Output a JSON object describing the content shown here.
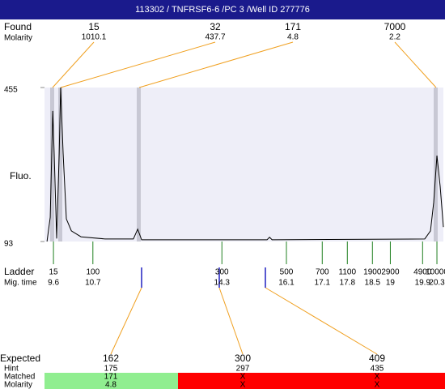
{
  "header": "113302 / TNFRSF6-6 /PC 3 /Well ID 277776",
  "found": {
    "label": "Found",
    "sub_label": "Molarity",
    "peaks": [
      {
        "size": 15,
        "molarity": 1010.1
      },
      {
        "size": 32,
        "molarity": 437.7
      },
      {
        "size": 171,
        "molarity": 4.8
      },
      {
        "size": 7000,
        "molarity": 2.2
      }
    ]
  },
  "chart_data": {
    "type": "line",
    "y_label": "Fluo.",
    "x": [
      9.42,
      9.51,
      9.58,
      9.62,
      9.69,
      9.76,
      9.8,
      9.87,
      9.96,
      10.1,
      10.37,
      11.04,
      11.83,
      11.95,
      12.06,
      15.56,
      15.63,
      15.7,
      19.96,
      20.12,
      20.21,
      20.3,
      20.39,
      20.48
    ],
    "values": [
      93,
      150,
      400,
      300,
      100,
      300,
      455,
      300,
      146,
      118,
      104,
      99,
      99,
      122,
      97,
      97,
      103,
      97,
      99,
      118,
      185,
      295,
      223,
      127
    ],
    "color": "#000000",
    "xlim": [
      9.35,
      20.48
    ],
    "ylim": [
      93,
      455
    ],
    "yticks": [
      93,
      455
    ]
  },
  "ladder": {
    "label": "Ladder",
    "sub_label": "Mig. time",
    "sizes": [
      15,
      100,
      300,
      500,
      700,
      1100,
      1900,
      2900,
      4900,
      10000
    ],
    "mig_times": [
      9.6,
      10.7,
      14.3,
      16.1,
      17.1,
      17.8,
      18.5,
      19,
      19.9,
      20.3
    ]
  },
  "expected": {
    "labels": [
      "Expected",
      "Hint",
      "Matched",
      "Molarity"
    ],
    "columns": [
      [
        "162",
        "175",
        "171",
        "4.8"
      ],
      [
        "300",
        "297",
        "X",
        "X"
      ],
      [
        "409",
        "435",
        "X",
        "X"
      ]
    ]
  }
}
